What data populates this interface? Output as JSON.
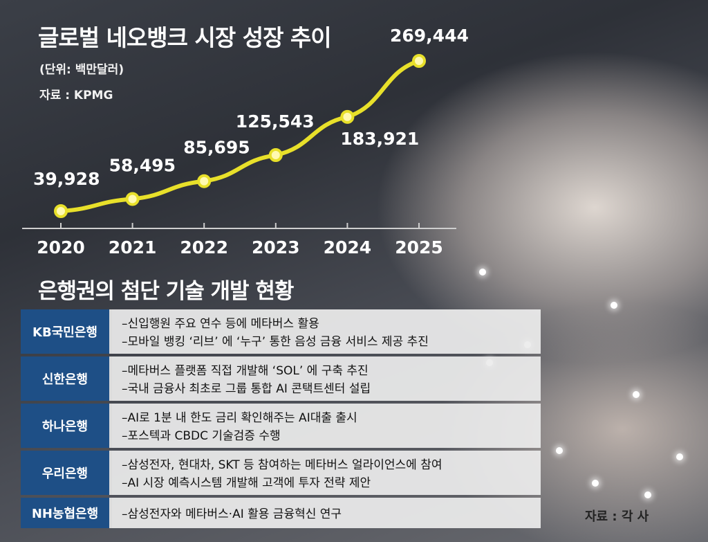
{
  "header": {
    "title": "글로벌 네오뱅크 시장 성장 추이",
    "unit": "(단위: 백만달러)",
    "source": "자료 : KPMG"
  },
  "chart_data": {
    "type": "line",
    "title": "글로벌 네오뱅크 시장 성장 추이",
    "xlabel": "",
    "ylabel": "",
    "x": [
      "2020",
      "2021",
      "2022",
      "2023",
      "2024",
      "2025"
    ],
    "series": [
      {
        "values": [
          39928,
          58495,
          85695,
          125543,
          183921,
          269444
        ]
      }
    ],
    "data_labels": [
      "39,928",
      "58,495",
      "85,695",
      "125,543",
      "183,921",
      "269,444"
    ],
    "grid": false,
    "color": "#e8e02a"
  },
  "section": {
    "title": "은행권의 첨단 기술 개발 현황"
  },
  "banks": [
    {
      "name": "KB국민은행",
      "lines": [
        "–신입행원 주요 연수 등에 메타버스 활용",
        "–모바일 뱅킹 ‘리브’ 에 ‘누구’ 통한 음성 금융 서비스 제공 추진"
      ]
    },
    {
      "name": "신한은행",
      "lines": [
        "–메타버스 플랫폼 직접 개발해 ‘SOL’ 에 구축 추진",
        "–국내 금융사 최초로 그룹 통합 AI 콘택트센터 설립"
      ]
    },
    {
      "name": "하나은행",
      "lines": [
        "–AI로 1분 내 한도 금리 확인해주는 AI대출 출시",
        "–포스텍과 CBDC 기술검증 수행"
      ]
    },
    {
      "name": "우리은행",
      "lines": [
        "–삼성전자, 현대차, SKT 등 참여하는 메타버스 얼라이언스에 참여",
        "–AI 시장 예측시스템 개발해 고객에 투자 전략 제안"
      ]
    },
    {
      "name": "NH농협은행",
      "lines": [
        "–삼성전자와 메타버스·AI 활용 금융혁신 연구"
      ]
    }
  ],
  "footer": {
    "source": "자료 : 각 사"
  }
}
